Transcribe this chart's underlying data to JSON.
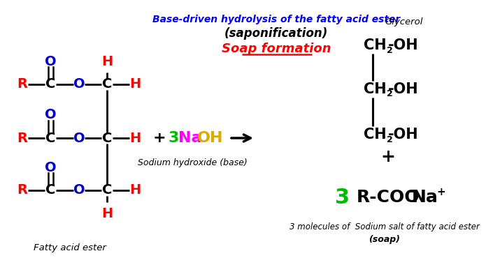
{
  "bg_color": "white",
  "title_line1": "Base-driven hydrolysis of the fatty acid ester",
  "title_line2": "(saponification)",
  "title_line3": "Soap formation",
  "label_fatty_acid": "Fatty acid ester",
  "label_glycerol": "Glycerol",
  "label_naoh": "Sodium hydroxide (base)",
  "label_3mol": "3 molecules of  Sodium salt of fatty acid ester",
  "label_soap": "(soap)",
  "naoh_3_color": "#00bb00",
  "naoh_na_color": "#ff00ff",
  "naoh_oh_color": "#ddaa00",
  "soap_3_color": "#00bb00",
  "r_color": "#ff0000",
  "o_double_color": "#0000cc",
  "o_ester_color": "#0000cc",
  "c_color": "#000000",
  "h_color": "#ff0000",
  "black": "#000000"
}
